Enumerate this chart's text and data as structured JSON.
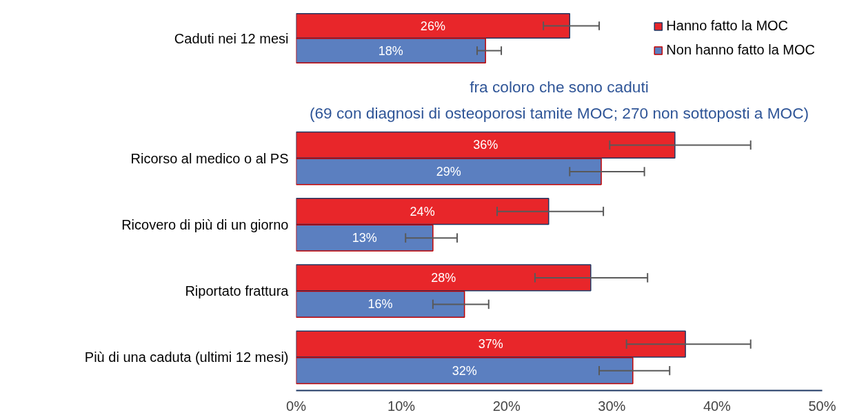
{
  "chart_data": [
    {
      "type": "bar",
      "orientation": "horizontal",
      "categories": [
        "Caduti nei 12 mesi"
      ],
      "xlim": [
        0,
        50
      ],
      "tick_labels": "y",
      "legend": "right",
      "series": [
        {
          "name": "Hanno fatto la MOC",
          "color": "#e8262a",
          "values": [
            26
          ],
          "value_labels": [
            "26%"
          ],
          "errors": [
            [
              23.5,
              28.8
            ]
          ]
        },
        {
          "name": "Non hanno fatto la MOC",
          "color": "#5b7fc0",
          "values": [
            18
          ],
          "value_labels": [
            "18%"
          ],
          "errors": [
            [
              17.2,
              19.5
            ]
          ]
        }
      ]
    },
    {
      "type": "bar",
      "orientation": "horizontal",
      "title": "fra coloro che sono caduti",
      "subtitle": "(69 con diagnosi di osteoporosi tamite MOC; 270 non sottoposti a MOC)",
      "categories": [
        "Ricorso al medico o al PS",
        "Ricovero di più di un giorno",
        "Riportato frattura",
        "Più di una caduta (ultimi 12 mesi)"
      ],
      "xlim": [
        0,
        50
      ],
      "xticks": [
        {
          "value": 0,
          "label": "0%"
        },
        {
          "value": 10,
          "label": "10%"
        },
        {
          "value": 20,
          "label": "20%"
        },
        {
          "value": 30,
          "label": "30%"
        },
        {
          "value": 40,
          "label": "40%"
        },
        {
          "value": 50,
          "label": "50%"
        }
      ],
      "series": [
        {
          "color": "#e8262a",
          "values": [
            36,
            24,
            28,
            37
          ],
          "value_labels": [
            "36%",
            "24%",
            "28%",
            "37%"
          ],
          "errors": [
            [
              29.8,
              43.2
            ],
            [
              19.1,
              29.2
            ],
            [
              22.7,
              33.4
            ],
            [
              31.4,
              43.2
            ]
          ]
        },
        {
          "color": "#5b7fc0",
          "values": [
            29,
            13,
            16,
            32
          ],
          "value_labels": [
            "29%",
            "13%",
            "16%",
            "32%"
          ],
          "errors": [
            [
              26.0,
              33.1
            ],
            [
              10.4,
              15.3
            ],
            [
              13.0,
              18.3
            ],
            [
              28.8,
              35.5
            ]
          ]
        }
      ]
    }
  ]
}
